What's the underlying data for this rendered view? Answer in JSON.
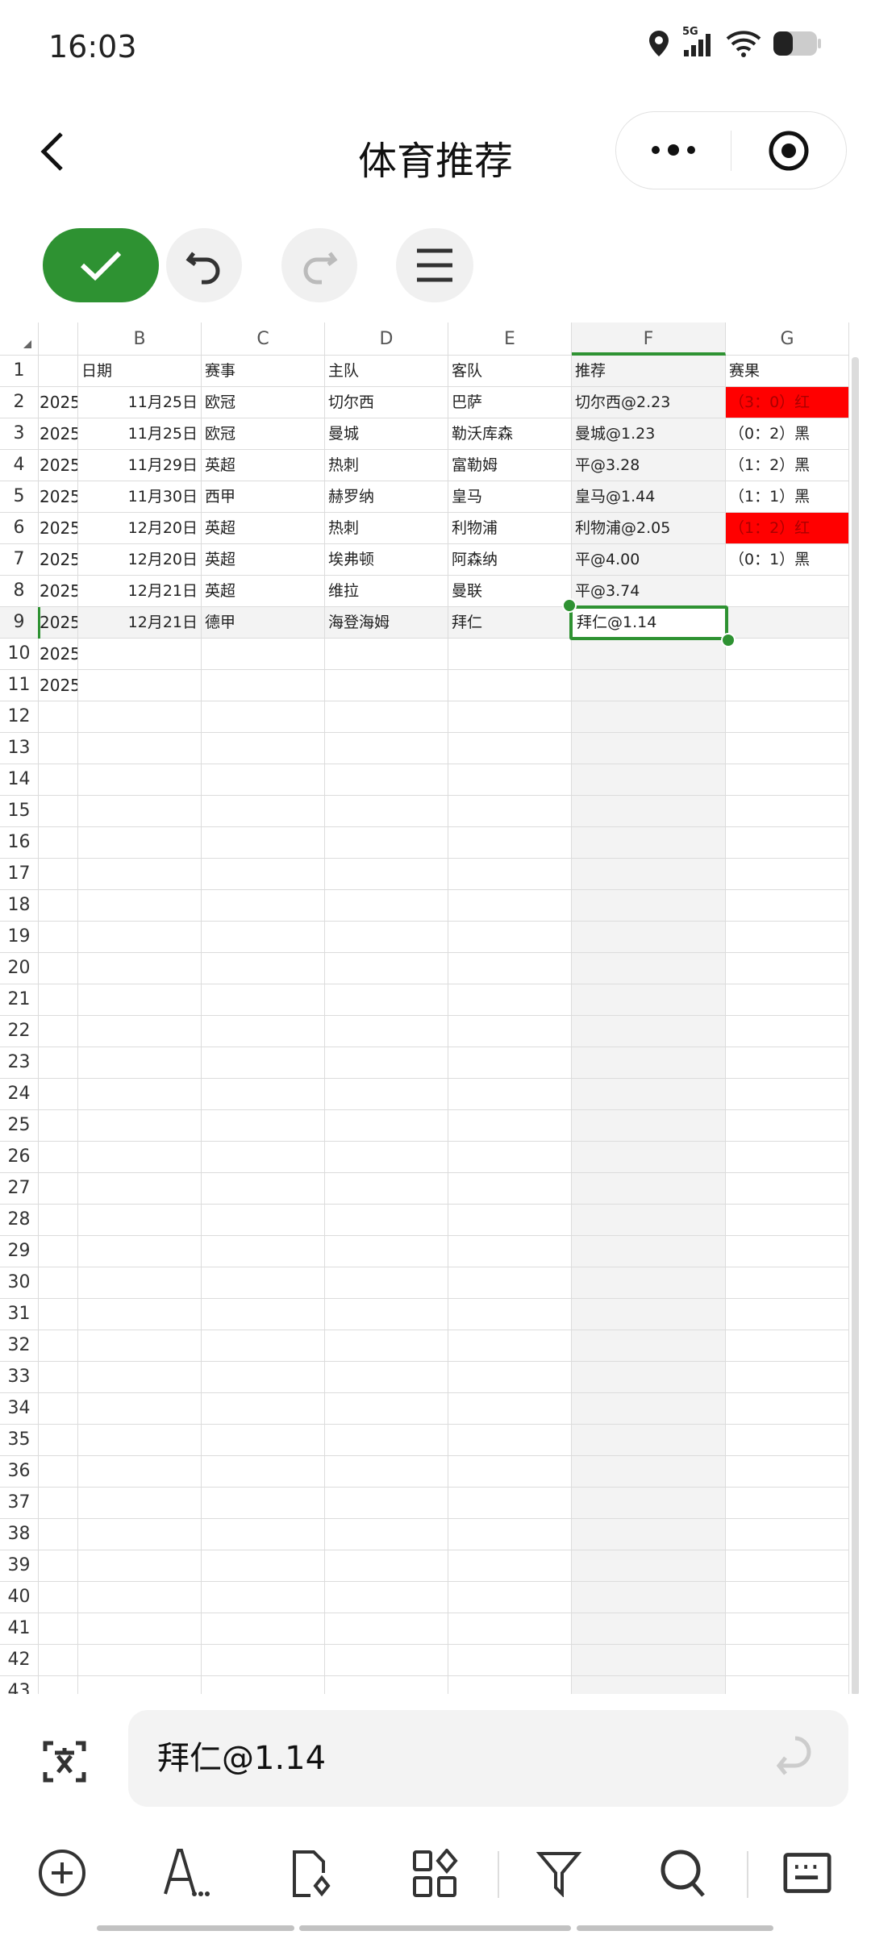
{
  "status_bar": {
    "time": "16:03",
    "network": "5G"
  },
  "header": {
    "title": "体育推荐"
  },
  "formula_bar": {
    "value": "拜仁@1.14"
  },
  "colors": {
    "accent": "#2e9232",
    "red_fill": "#ff0000"
  },
  "sheet": {
    "column_headers": [
      "",
      "B",
      "C",
      "D",
      "E",
      "F",
      "G"
    ],
    "selected_cell": "F9",
    "rows": [
      [
        "",
        "日期",
        "赛事",
        "主队",
        "客队",
        "推荐",
        "赛果"
      ],
      [
        "2025",
        "11月25日",
        "欧冠",
        "切尔西",
        "巴萨",
        "切尔西@2.23",
        "（3：0）红"
      ],
      [
        "2025",
        "11月25日",
        "欧冠",
        "曼城",
        "勒沃库森",
        "曼城@1.23",
        "（0：2）黑"
      ],
      [
        "2025",
        "11月29日",
        "英超",
        "热刺",
        "富勒姆",
        "平@3.28",
        "（1：2）黑"
      ],
      [
        "2025",
        "11月30日",
        "西甲",
        "赫罗纳",
        "皇马",
        "皇马@1.44",
        "（1：1）黑"
      ],
      [
        "2025",
        "12月20日",
        "英超",
        "热刺",
        "利物浦",
        "利物浦@2.05",
        "（1：2）红"
      ],
      [
        "2025",
        "12月20日",
        "英超",
        "埃弗顿",
        "阿森纳",
        "平@4.00",
        "（0：1）黑"
      ],
      [
        "2025",
        "12月21日",
        "英超",
        "维拉",
        "曼联",
        "平@3.74",
        ""
      ],
      [
        "2025",
        "12月21日",
        "德甲",
        "海登海姆",
        "拜仁",
        "拜仁@1.14",
        ""
      ],
      [
        "2025",
        "",
        "",
        "",
        "",
        "",
        ""
      ],
      [
        "2025",
        "",
        "",
        "",
        "",
        "",
        ""
      ]
    ],
    "red_cells": [
      "G2",
      "G6"
    ],
    "visible_row_count": 43
  },
  "toolbar_icons": [
    "check-icon",
    "undo-icon",
    "redo-icon",
    "menu-icon"
  ],
  "bottom_icons": [
    "insert-icon",
    "text-format-icon",
    "file-preview-icon",
    "apps-icon",
    "filter-icon",
    "search-icon",
    "keyboard-icon"
  ]
}
